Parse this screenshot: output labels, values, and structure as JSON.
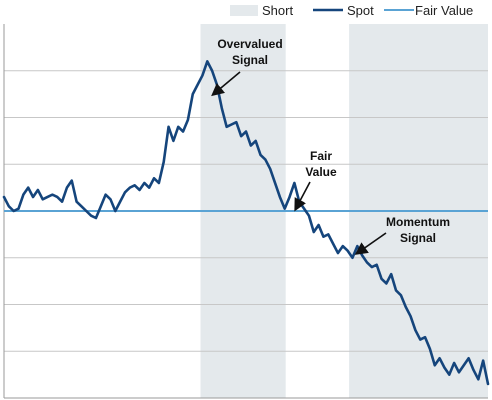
{
  "chart_data": {
    "type": "line",
    "title": "",
    "xlabel": "",
    "ylabel": "",
    "x_range": [
      0,
      100
    ],
    "y_range": [
      0,
      8
    ],
    "grid": {
      "horizontal": true,
      "vertical": false
    },
    "legend_position": "top-right",
    "legend": [
      {
        "label": "Short",
        "kind": "band",
        "color": "#e4e9ec"
      },
      {
        "label": "Spot",
        "kind": "line",
        "color": "#15457c"
      },
      {
        "label": "Fair Value",
        "kind": "line",
        "color": "#5aa3d4"
      }
    ],
    "short_periods": [
      {
        "start": 40.6,
        "end": 58.2
      },
      {
        "start": 71.3,
        "end": 100
      }
    ],
    "fair_value": 4.0,
    "series": [
      {
        "name": "Spot",
        "x": [
          0,
          1,
          2,
          3,
          4,
          5,
          6,
          7,
          8,
          9,
          10,
          11,
          12,
          13,
          14,
          15,
          16,
          17,
          18,
          19,
          20,
          21,
          22,
          23,
          24,
          25,
          26,
          27,
          28,
          29,
          30,
          31,
          32,
          33,
          34,
          35,
          36,
          37,
          38,
          39,
          40,
          41,
          42,
          43,
          44,
          45,
          46,
          47,
          48,
          49,
          50,
          51,
          52,
          53,
          54,
          55,
          56,
          57,
          58,
          59,
          60,
          61,
          62,
          63,
          64,
          65,
          66,
          67,
          68,
          69,
          70,
          71,
          72,
          73,
          74,
          75,
          76,
          77,
          78,
          79,
          80,
          81,
          82,
          83,
          84,
          85,
          86,
          87,
          88,
          89,
          90,
          91,
          92,
          93,
          94,
          95,
          96,
          97,
          98,
          99,
          100
        ],
        "values": [
          4.3,
          4.1,
          4.0,
          4.05,
          4.35,
          4.5,
          4.3,
          4.45,
          4.25,
          4.3,
          4.35,
          4.3,
          4.2,
          4.5,
          4.65,
          4.2,
          4.1,
          4.0,
          3.9,
          3.85,
          4.1,
          4.35,
          4.25,
          4.0,
          4.2,
          4.4,
          4.5,
          4.55,
          4.45,
          4.6,
          4.5,
          4.7,
          4.6,
          5.05,
          5.8,
          5.5,
          5.8,
          5.7,
          5.95,
          6.5,
          6.7,
          6.9,
          7.2,
          7.0,
          6.7,
          6.2,
          5.8,
          5.85,
          5.9,
          5.6,
          5.7,
          5.4,
          5.5,
          5.2,
          5.1,
          4.9,
          4.6,
          4.3,
          4.05,
          4.3,
          4.6,
          4.2,
          4.05,
          3.9,
          3.55,
          3.7,
          3.45,
          3.5,
          3.3,
          3.1,
          3.25,
          3.15,
          3.0,
          3.25,
          3.05,
          2.9,
          2.8,
          2.85,
          2.55,
          2.45,
          2.65,
          2.3,
          2.2,
          1.95,
          1.75,
          1.45,
          1.25,
          1.3,
          1.05,
          0.7,
          0.85,
          0.65,
          0.5,
          0.75,
          0.55,
          0.7,
          0.85,
          0.6,
          0.4,
          0.8,
          0.3
        ]
      }
    ],
    "annotations": [
      {
        "text_lines": [
          "Overvalued",
          "Signal"
        ],
        "target_x": 43.3,
        "target_y": 6.5
      },
      {
        "text_lines": [
          "Fair",
          "Value"
        ],
        "target_x": 60.3,
        "target_y": 4.05
      },
      {
        "text_lines": [
          "Momentum",
          "Signal"
        ],
        "target_x": 73.0,
        "target_y": 3.1
      }
    ]
  }
}
